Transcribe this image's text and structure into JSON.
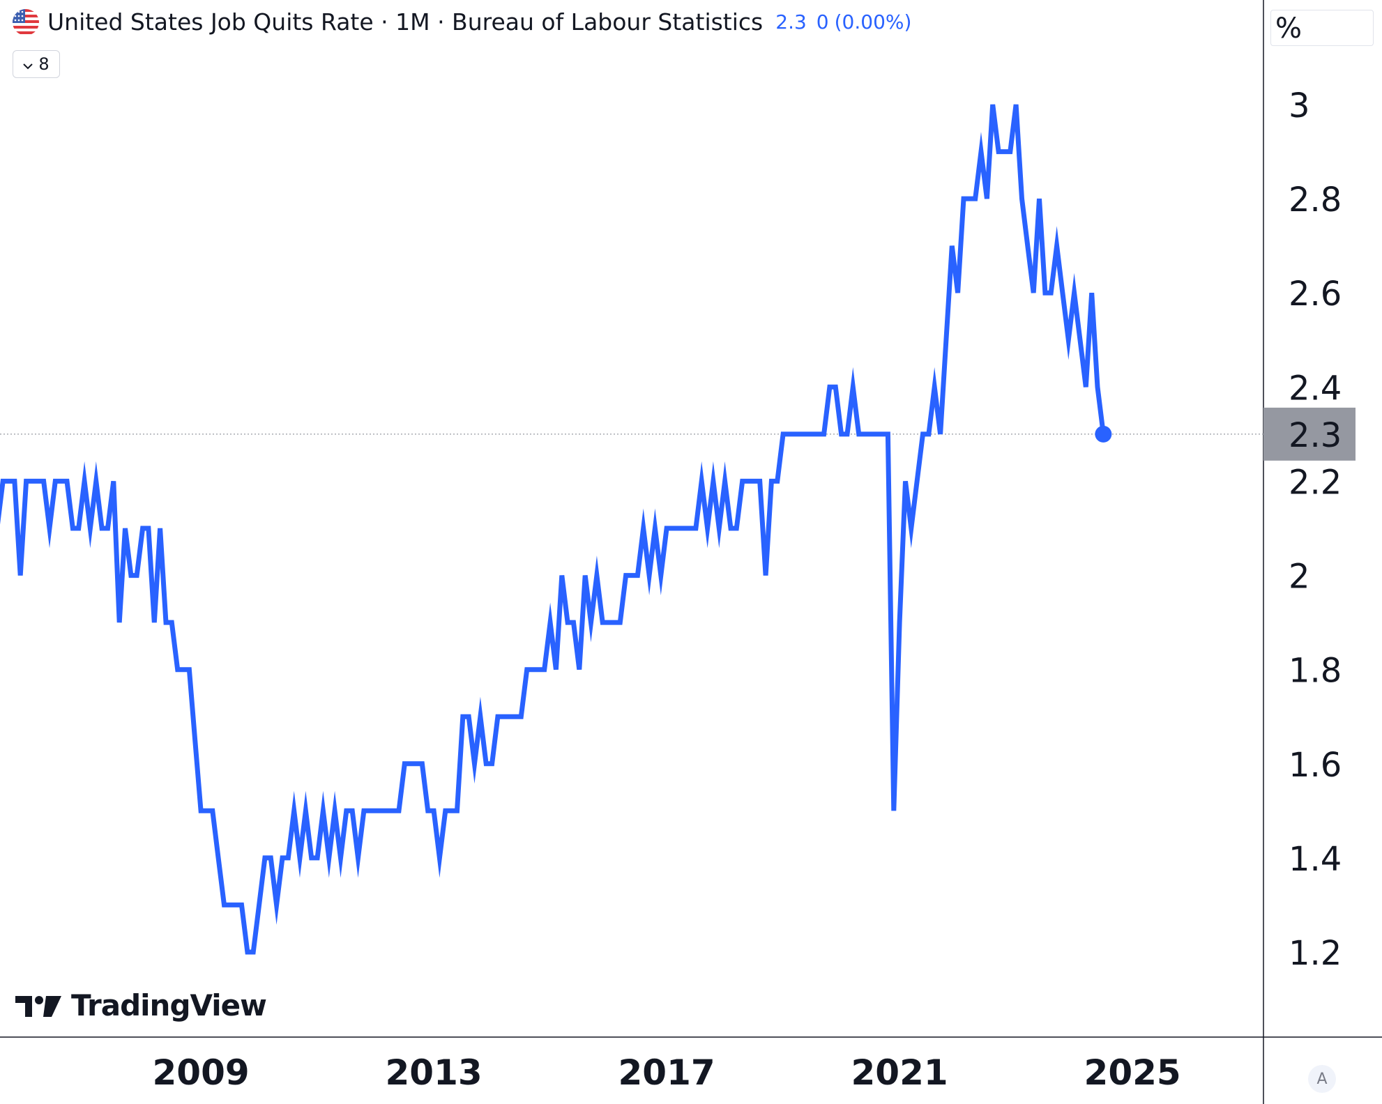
{
  "header": {
    "title": "United States Job Quits Rate · 1M · Bureau of Labour Statistics",
    "last_value": "2.3",
    "change": "0",
    "change_pct": "(0.00%)",
    "indicator_count": "8",
    "flag_icon": "us-flag-icon"
  },
  "unit_label": "%",
  "brand": "TradingView",
  "scale_mode_label": "A",
  "colors": {
    "line": "#2962ff",
    "price_label_bg": "#9598a1",
    "axis_border": "#131722",
    "value_text": "#2962ff"
  },
  "chart_data": {
    "type": "line",
    "title": "United States Job Quits Rate",
    "xlabel": "",
    "ylabel": "%",
    "x_ticks": [
      "2009",
      "2013",
      "2017",
      "2021",
      "2025"
    ],
    "y_ticks": [
      "1.2",
      "1.4",
      "1.6",
      "1.8",
      "2",
      "2.2",
      "2.4",
      "2.6",
      "2.8",
      "3"
    ],
    "ylim": [
      1.0,
      3.15
    ],
    "xlim": [
      2005.55,
      2027.25
    ],
    "last_value_label": "2.3",
    "grid": false,
    "series": [
      {
        "points": [
          [
            2005.5,
            2.1
          ],
          [
            2005.6,
            2.2
          ],
          [
            2005.8,
            2.2
          ],
          [
            2005.9,
            2.0
          ],
          [
            2006.0,
            2.2
          ],
          [
            2006.2,
            2.2
          ],
          [
            2006.3,
            2.2
          ],
          [
            2006.4,
            2.1
          ],
          [
            2006.5,
            2.2
          ],
          [
            2006.6,
            2.2
          ],
          [
            2006.7,
            2.2
          ],
          [
            2006.8,
            2.1
          ],
          [
            2006.9,
            2.1
          ],
          [
            2007.0,
            2.2
          ],
          [
            2007.1,
            2.1
          ],
          [
            2007.2,
            2.2
          ],
          [
            2007.3,
            2.1
          ],
          [
            2007.4,
            2.1
          ],
          [
            2007.5,
            2.2
          ],
          [
            2007.6,
            1.9
          ],
          [
            2007.7,
            2.1
          ],
          [
            2007.8,
            2.0
          ],
          [
            2007.9,
            2.0
          ],
          [
            2008.0,
            2.1
          ],
          [
            2008.1,
            2.1
          ],
          [
            2008.2,
            1.9
          ],
          [
            2008.3,
            2.1
          ],
          [
            2008.4,
            1.9
          ],
          [
            2008.5,
            1.9
          ],
          [
            2008.6,
            1.8
          ],
          [
            2008.8,
            1.8
          ],
          [
            2008.9,
            1.65
          ],
          [
            2009.0,
            1.5
          ],
          [
            2009.2,
            1.5
          ],
          [
            2009.3,
            1.4
          ],
          [
            2009.4,
            1.3
          ],
          [
            2009.7,
            1.3
          ],
          [
            2009.8,
            1.2
          ],
          [
            2009.9,
            1.2
          ],
          [
            2010.0,
            1.3
          ],
          [
            2010.1,
            1.4
          ],
          [
            2010.2,
            1.4
          ],
          [
            2010.3,
            1.3
          ],
          [
            2010.4,
            1.4
          ],
          [
            2010.5,
            1.4
          ],
          [
            2010.6,
            1.5
          ],
          [
            2010.7,
            1.4
          ],
          [
            2010.8,
            1.5
          ],
          [
            2010.9,
            1.4
          ],
          [
            2011.0,
            1.4
          ],
          [
            2011.1,
            1.5
          ],
          [
            2011.2,
            1.4
          ],
          [
            2011.3,
            1.5
          ],
          [
            2011.4,
            1.4
          ],
          [
            2011.5,
            1.5
          ],
          [
            2011.6,
            1.5
          ],
          [
            2011.7,
            1.4
          ],
          [
            2011.8,
            1.5
          ],
          [
            2011.9,
            1.5
          ],
          [
            2012.0,
            1.5
          ],
          [
            2012.2,
            1.5
          ],
          [
            2012.4,
            1.5
          ],
          [
            2012.5,
            1.6
          ],
          [
            2012.6,
            1.6
          ],
          [
            2012.8,
            1.6
          ],
          [
            2012.9,
            1.5
          ],
          [
            2013.0,
            1.5
          ],
          [
            2013.1,
            1.4
          ],
          [
            2013.2,
            1.5
          ],
          [
            2013.4,
            1.5
          ],
          [
            2013.5,
            1.7
          ],
          [
            2013.6,
            1.7
          ],
          [
            2013.7,
            1.6
          ],
          [
            2013.8,
            1.7
          ],
          [
            2013.9,
            1.6
          ],
          [
            2014.0,
            1.6
          ],
          [
            2014.1,
            1.7
          ],
          [
            2014.3,
            1.7
          ],
          [
            2014.5,
            1.7
          ],
          [
            2014.6,
            1.8
          ],
          [
            2014.8,
            1.8
          ],
          [
            2014.9,
            1.8
          ],
          [
            2015.0,
            1.9
          ],
          [
            2015.1,
            1.8
          ],
          [
            2015.2,
            2.0
          ],
          [
            2015.3,
            1.9
          ],
          [
            2015.4,
            1.9
          ],
          [
            2015.5,
            1.8
          ],
          [
            2015.6,
            2.0
          ],
          [
            2015.7,
            1.9
          ],
          [
            2015.8,
            2.0
          ],
          [
            2015.9,
            1.9
          ],
          [
            2016.0,
            1.9
          ],
          [
            2016.2,
            1.9
          ],
          [
            2016.3,
            2.0
          ],
          [
            2016.5,
            2.0
          ],
          [
            2016.6,
            2.1
          ],
          [
            2016.7,
            2.0
          ],
          [
            2016.8,
            2.1
          ],
          [
            2016.9,
            2.0
          ],
          [
            2017.0,
            2.1
          ],
          [
            2017.2,
            2.1
          ],
          [
            2017.4,
            2.1
          ],
          [
            2017.5,
            2.1
          ],
          [
            2017.6,
            2.2
          ],
          [
            2017.7,
            2.1
          ],
          [
            2017.8,
            2.2
          ],
          [
            2017.9,
            2.1
          ],
          [
            2018.0,
            2.2
          ],
          [
            2018.1,
            2.1
          ],
          [
            2018.2,
            2.1
          ],
          [
            2018.3,
            2.2
          ],
          [
            2018.5,
            2.2
          ],
          [
            2018.6,
            2.2
          ],
          [
            2018.7,
            2.0
          ],
          [
            2018.8,
            2.2
          ],
          [
            2018.9,
            2.2
          ],
          [
            2019.0,
            2.3
          ],
          [
            2019.2,
            2.3
          ],
          [
            2019.4,
            2.3
          ],
          [
            2019.6,
            2.3
          ],
          [
            2019.7,
            2.3
          ],
          [
            2019.8,
            2.4
          ],
          [
            2019.9,
            2.4
          ],
          [
            2020.0,
            2.3
          ],
          [
            2020.1,
            2.3
          ],
          [
            2020.2,
            2.4
          ],
          [
            2020.3,
            2.3
          ],
          [
            2020.5,
            2.3
          ],
          [
            2020.7,
            2.3
          ],
          [
            2020.8,
            2.3
          ],
          [
            2020.9,
            1.5
          ],
          [
            2021.0,
            1.9
          ],
          [
            2021.1,
            2.2
          ],
          [
            2021.2,
            2.1
          ],
          [
            2021.4,
            2.3
          ],
          [
            2021.5,
            2.3
          ],
          [
            2021.6,
            2.4
          ],
          [
            2021.7,
            2.3
          ],
          [
            2021.8,
            2.5
          ],
          [
            2021.9,
            2.7
          ],
          [
            2022.0,
            2.6
          ],
          [
            2022.1,
            2.8
          ],
          [
            2022.2,
            2.8
          ],
          [
            2022.3,
            2.8
          ],
          [
            2022.4,
            2.9
          ],
          [
            2022.5,
            2.8
          ],
          [
            2022.6,
            3.0
          ],
          [
            2022.7,
            2.9
          ],
          [
            2022.8,
            2.9
          ],
          [
            2022.9,
            2.9
          ],
          [
            2023.0,
            3.0
          ],
          [
            2023.1,
            2.8
          ],
          [
            2023.2,
            2.7
          ],
          [
            2023.3,
            2.6
          ],
          [
            2023.4,
            2.8
          ],
          [
            2023.5,
            2.6
          ],
          [
            2023.6,
            2.6
          ],
          [
            2023.7,
            2.7
          ],
          [
            2023.8,
            2.6
          ],
          [
            2023.9,
            2.5
          ],
          [
            2024.0,
            2.6
          ],
          [
            2024.1,
            2.5
          ],
          [
            2024.2,
            2.4
          ],
          [
            2024.3,
            2.6
          ],
          [
            2024.4,
            2.4
          ],
          [
            2024.5,
            2.3
          ]
        ]
      }
    ]
  }
}
